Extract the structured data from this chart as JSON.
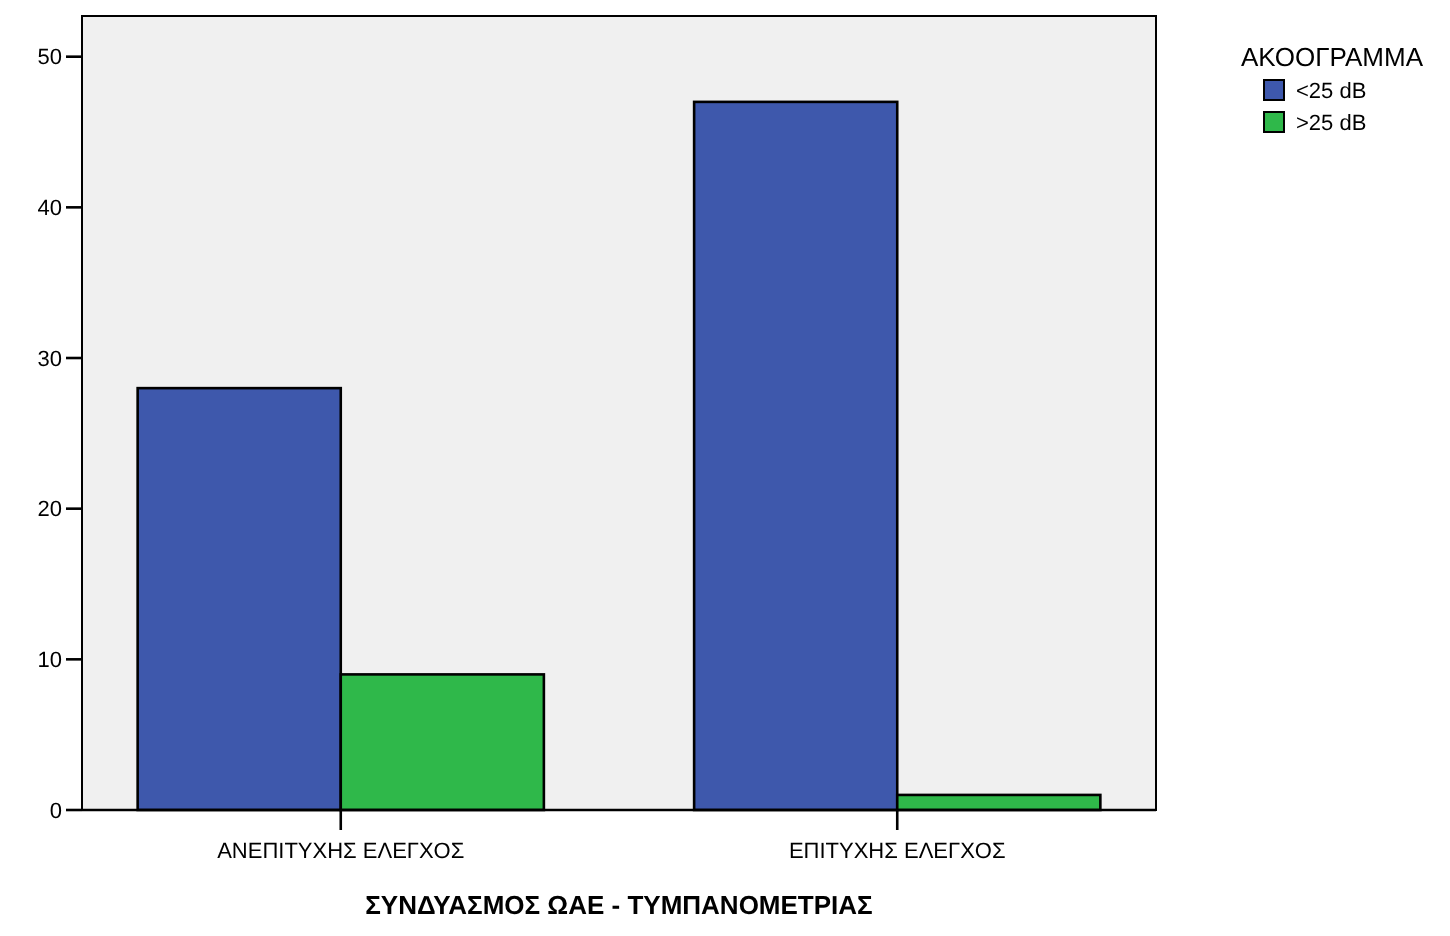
{
  "chart_data": {
    "type": "bar",
    "xlabel": "ΣΥΝΔΥΑΣΜΟΣ ΩΑΕ - ΤΥΜΠΑΝΟΜΕΤΡΙΑΣ",
    "legend_title": "ΑΚΟΟΓΡΑΜΜΑ",
    "categories": [
      "ΑΝΕΠΙΤΥΧΗΣ ΕΛΕΓΧΟΣ",
      "ΕΠΙΤΥΧΗΣ ΕΛΕΓΧΟΣ"
    ],
    "series": [
      {
        "name": "<25 dB",
        "color": "#3e58ac",
        "values": [
          28,
          47
        ]
      },
      {
        "name": ">25 dB",
        "color": "#2fb84a",
        "values": [
          9,
          1
        ]
      }
    ],
    "ylim": [
      0,
      52.7
    ],
    "yticks": [
      0,
      10,
      20,
      30,
      40,
      50
    ],
    "grid": false,
    "legend": "top right"
  }
}
